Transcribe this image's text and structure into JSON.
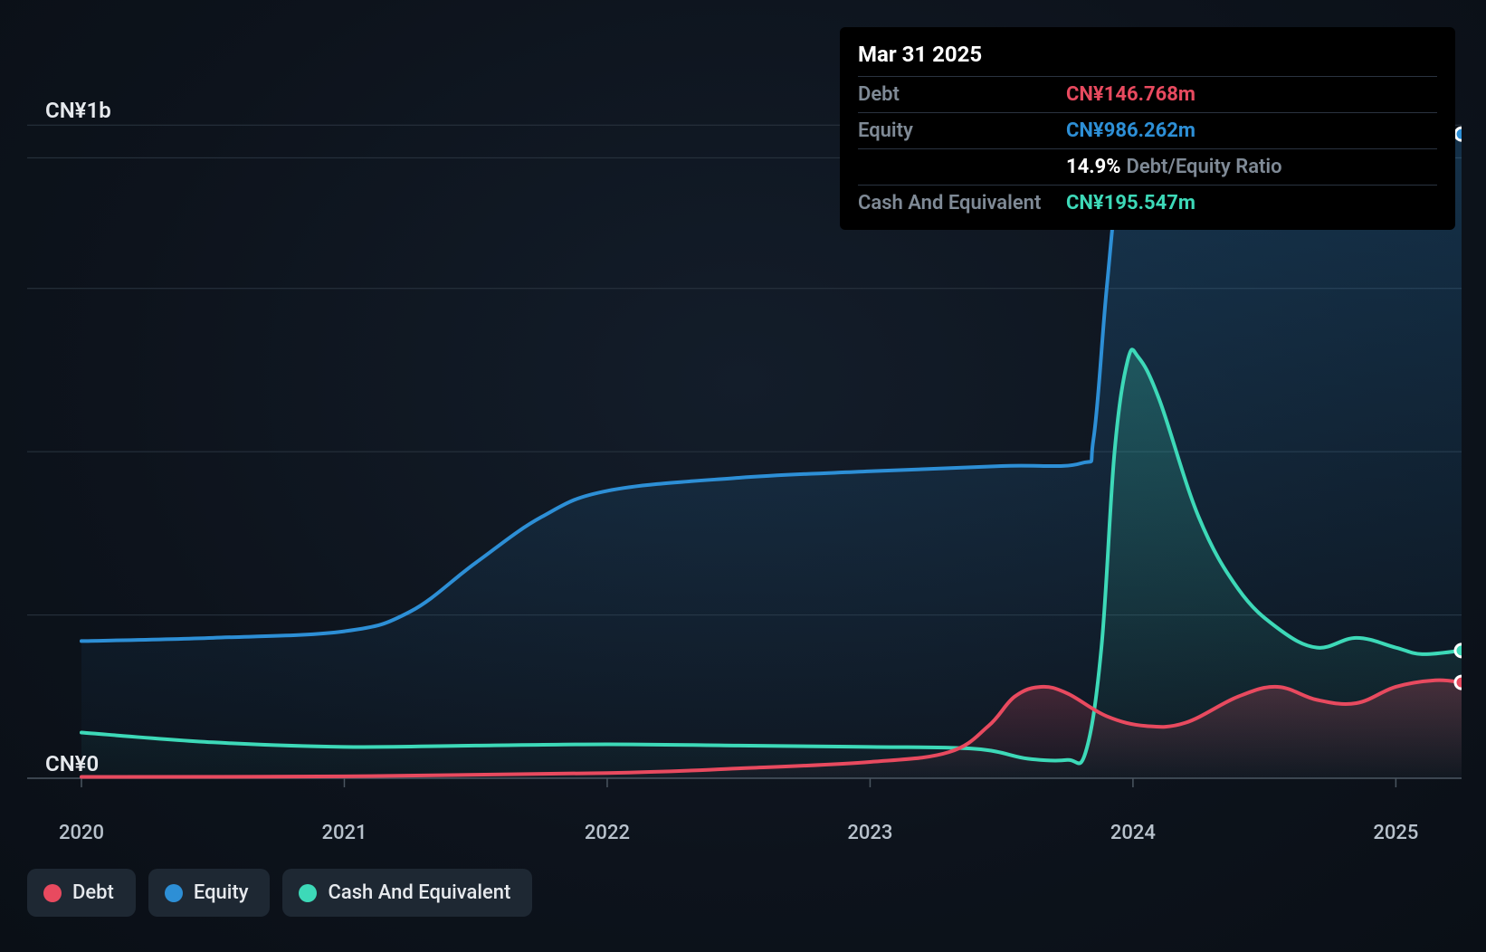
{
  "chart": {
    "type": "area",
    "background_gradient": [
      "#131d2a",
      "#0d131c",
      "#0a0f16"
    ],
    "plot": {
      "x_min": 2020.0,
      "x_max": 2025.25,
      "y_min": 0,
      "y_max": 1150000000,
      "gridline_color": "#2a3540",
      "axis_line_color": "#4a5560",
      "xgrid_values": [
        2020,
        2021,
        2022,
        2023,
        2024,
        2025
      ],
      "ygrid_values": [
        0,
        500000000,
        1000000000
      ],
      "ygrid_minor": [
        250000000,
        750000000,
        950000000
      ]
    },
    "y_axis": {
      "labels": [
        {
          "value": 0,
          "text": "CN¥0"
        },
        {
          "value": 1000000000,
          "text": "CN¥1b"
        }
      ],
      "fontsize": 24,
      "color": "#e6e9ed"
    },
    "x_axis": {
      "labels": [
        {
          "value": 2020,
          "text": "2020"
        },
        {
          "value": 2021,
          "text": "2021"
        },
        {
          "value": 2022,
          "text": "2022"
        },
        {
          "value": 2023,
          "text": "2023"
        },
        {
          "value": 2024,
          "text": "2024"
        },
        {
          "value": 2025,
          "text": "2025"
        }
      ],
      "fontsize": 22,
      "color": "#b8c2cc"
    },
    "series": {
      "equity": {
        "label": "Equity",
        "color": "#2d8fd6",
        "stroke_width": 4,
        "fill_opacity": 0.25,
        "points": [
          [
            2020.0,
            210000000
          ],
          [
            2020.5,
            215000000
          ],
          [
            2021.0,
            225000000
          ],
          [
            2021.25,
            255000000
          ],
          [
            2021.5,
            330000000
          ],
          [
            2021.75,
            400000000
          ],
          [
            2022.0,
            440000000
          ],
          [
            2022.5,
            460000000
          ],
          [
            2023.0,
            470000000
          ],
          [
            2023.5,
            478000000
          ],
          [
            2023.8,
            482000000
          ],
          [
            2023.85,
            520000000
          ],
          [
            2023.9,
            750000000
          ],
          [
            2023.95,
            935000000
          ],
          [
            2024.0,
            955000000
          ],
          [
            2024.2,
            960000000
          ],
          [
            2024.5,
            955000000
          ],
          [
            2024.75,
            948000000
          ],
          [
            2025.0,
            960000000
          ],
          [
            2025.25,
            986262000
          ]
        ]
      },
      "cash": {
        "label": "Cash And Equivalent",
        "color": "#3dd9b8",
        "stroke_width": 4,
        "fill_opacity": 0.25,
        "points": [
          [
            2020.0,
            70000000
          ],
          [
            2020.5,
            55000000
          ],
          [
            2021.0,
            48000000
          ],
          [
            2021.5,
            50000000
          ],
          [
            2022.0,
            52000000
          ],
          [
            2022.5,
            50000000
          ],
          [
            2023.0,
            48000000
          ],
          [
            2023.4,
            45000000
          ],
          [
            2023.6,
            30000000
          ],
          [
            2023.75,
            28000000
          ],
          [
            2023.82,
            40000000
          ],
          [
            2023.88,
            200000000
          ],
          [
            2023.93,
            500000000
          ],
          [
            2023.98,
            640000000
          ],
          [
            2024.02,
            645000000
          ],
          [
            2024.1,
            580000000
          ],
          [
            2024.25,
            400000000
          ],
          [
            2024.4,
            290000000
          ],
          [
            2024.55,
            230000000
          ],
          [
            2024.7,
            200000000
          ],
          [
            2024.85,
            215000000
          ],
          [
            2025.0,
            200000000
          ],
          [
            2025.1,
            190000000
          ],
          [
            2025.25,
            195547000
          ]
        ]
      },
      "debt": {
        "label": "Debt",
        "color": "#e84a5f",
        "stroke_width": 4,
        "fill_opacity": 0.25,
        "points": [
          [
            2020.0,
            2000000
          ],
          [
            2021.0,
            3000000
          ],
          [
            2022.0,
            8000000
          ],
          [
            2022.5,
            15000000
          ],
          [
            2023.0,
            25000000
          ],
          [
            2023.3,
            40000000
          ],
          [
            2023.45,
            80000000
          ],
          [
            2023.55,
            125000000
          ],
          [
            2023.65,
            140000000
          ],
          [
            2023.75,
            130000000
          ],
          [
            2023.9,
            95000000
          ],
          [
            2024.05,
            80000000
          ],
          [
            2024.2,
            85000000
          ],
          [
            2024.4,
            125000000
          ],
          [
            2024.55,
            140000000
          ],
          [
            2024.7,
            120000000
          ],
          [
            2024.85,
            115000000
          ],
          [
            2025.0,
            140000000
          ],
          [
            2025.15,
            150000000
          ],
          [
            2025.25,
            146768000
          ]
        ]
      }
    },
    "end_markers": {
      "equity": {
        "x": 2025.25,
        "y": 986262000,
        "color": "#2d8fd6"
      },
      "cash": {
        "x": 2025.25,
        "y": 195547000,
        "color": "#3dd9b8"
      },
      "debt": {
        "x": 2025.25,
        "y": 146768000,
        "color": "#e84a5f"
      }
    }
  },
  "tooltip": {
    "title": "Mar 31 2025",
    "rows": [
      {
        "label": "Debt",
        "value": "CN¥146.768m",
        "color": "#e84a5f"
      },
      {
        "label": "Equity",
        "value": "CN¥986.262m",
        "color": "#2d8fd6"
      },
      {
        "label": "",
        "ratio_value": "14.9%",
        "ratio_label": "Debt/Equity Ratio"
      },
      {
        "label": "Cash And Equivalent",
        "value": "CN¥195.547m",
        "color": "#3dd9b8"
      }
    ]
  },
  "legend": {
    "pill_bg": "#1e2833",
    "items": [
      {
        "label": "Debt",
        "color": "#e84a5f"
      },
      {
        "label": "Equity",
        "color": "#2d8fd6"
      },
      {
        "label": "Cash And Equivalent",
        "color": "#3dd9b8"
      }
    ]
  }
}
